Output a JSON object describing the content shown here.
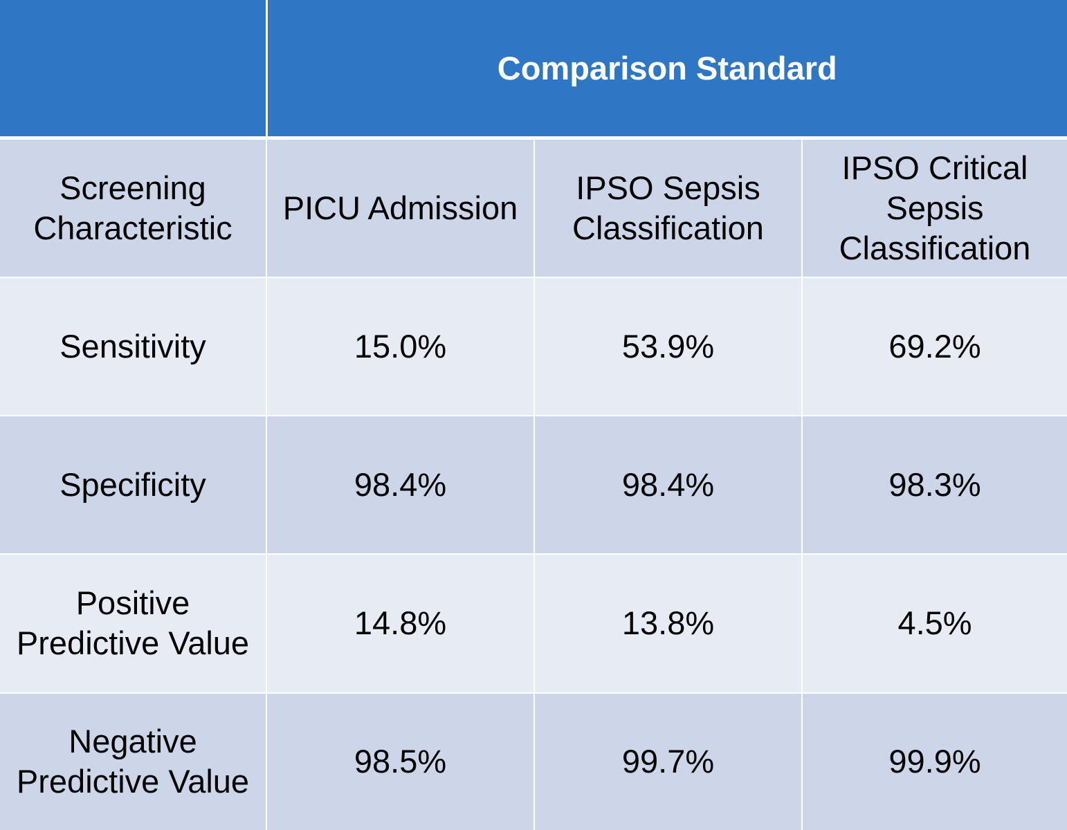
{
  "table": {
    "title": "Comparison Standard",
    "corner_label": "",
    "headers": [
      "Screening Characteristic",
      "PICU Admission",
      "IPSO Sepsis Classification",
      "IPSO Critical Sepsis Classification"
    ],
    "rows": [
      {
        "label": "Sensitivity",
        "values": [
          "15.0%",
          "53.9%",
          "69.2%"
        ]
      },
      {
        "label": "Specificity",
        "values": [
          "98.4%",
          "98.4%",
          "98.3%"
        ]
      },
      {
        "label": "Positive Predictive Value",
        "values": [
          "14.8%",
          "13.8%",
          "4.5%"
        ]
      },
      {
        "label": "Negative Predictive Value",
        "values": [
          "98.5%",
          "99.7%",
          "99.9%"
        ]
      }
    ]
  },
  "colors": {
    "title_bg": "#2f77c4",
    "band_dark": "#cdd6e8",
    "band_light": "#e7ebf4"
  }
}
